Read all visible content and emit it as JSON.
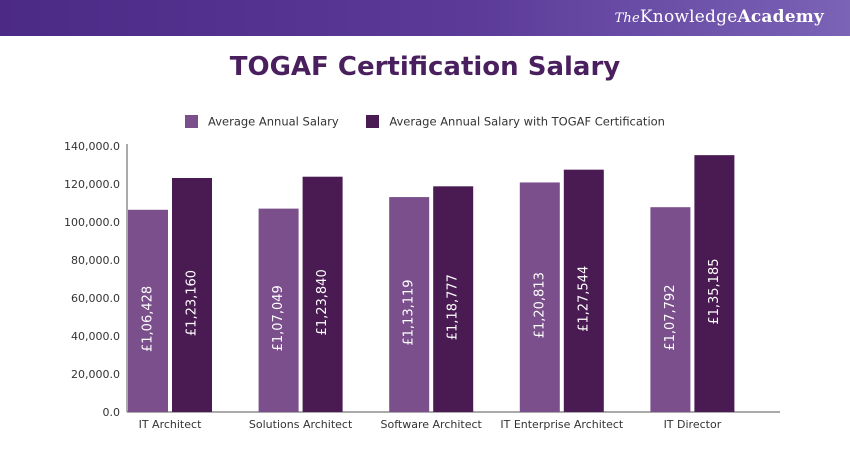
{
  "brand": {
    "the": "The",
    "knowledge": "Knowledge",
    "academy": "Academy"
  },
  "colors": {
    "banner": "#4b2a86",
    "series_avg": "#7a4f8c",
    "series_togaf": "#4a1b52",
    "title": "#4a1f5e",
    "axis": "#555555"
  },
  "chart_data": {
    "type": "bar",
    "title": "TOGAF Certification Salary",
    "categories": [
      "IT Architect",
      "Solutions Architect",
      "Software Architect",
      "IT Enterprise Architect",
      "IT Director"
    ],
    "series": [
      {
        "name": "Average Annual Salary",
        "color": "#7a4f8c",
        "values": [
          106428,
          107049,
          113119,
          120813,
          107792
        ],
        "labels": [
          "£1,06,428",
          "£1,07,049",
          "£1,13,119",
          "£1,20,813",
          "£1,07,792"
        ]
      },
      {
        "name": "Average Annual Salary with TOGAF Certification",
        "color": "#4a1b52",
        "values": [
          123160,
          123840,
          118777,
          127544,
          135185
        ],
        "labels": [
          "£1,23,160",
          "£1,23,840",
          "£1,18,777",
          "£1,27,544",
          "£1,35,185"
        ]
      }
    ],
    "ylim": [
      0,
      140000
    ],
    "yticks": [
      0,
      20000,
      40000,
      60000,
      80000,
      100000,
      120000,
      140000
    ],
    "ytick_labels": [
      "0.0",
      "20,000.0",
      "40,000.0",
      "60,000.0",
      "80,000.0",
      "100,000.0",
      "120,000.0",
      "140,000.0"
    ],
    "grid": false,
    "legend_position": "top"
  }
}
